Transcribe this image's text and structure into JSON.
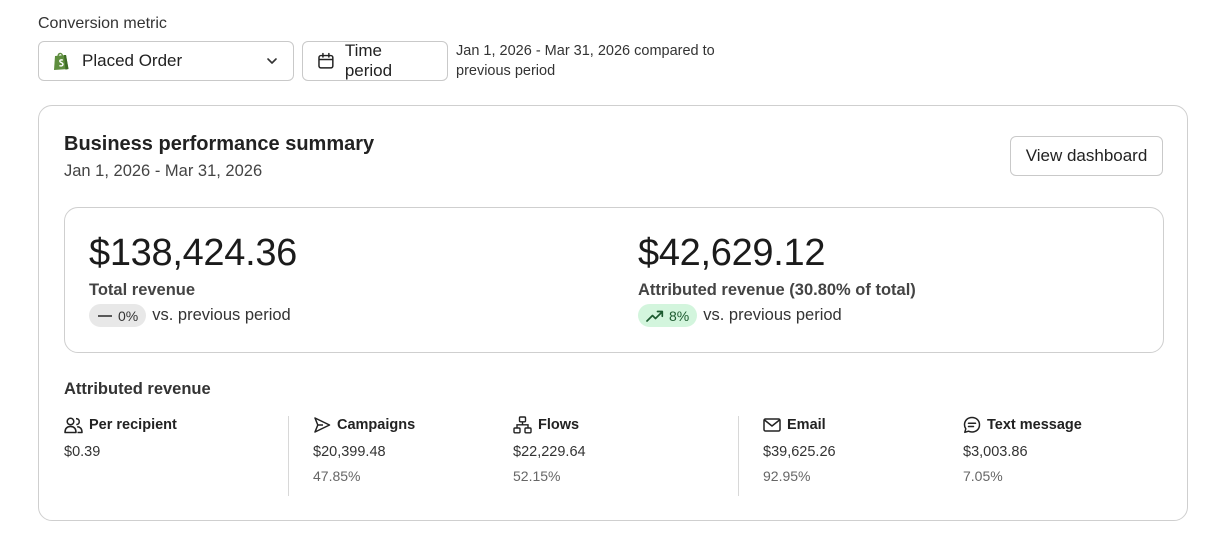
{
  "filter": {
    "metric_label": "Conversion metric",
    "metric_value": "Placed Order",
    "time_button": "Time period",
    "period_note": "Jan 1, 2026 - Mar 31, 2026 compared to previous period"
  },
  "summary": {
    "title": "Business performance summary",
    "date_range": "Jan 1, 2026 - Mar 31, 2026",
    "view_dashboard": "View dashboard"
  },
  "totals": {
    "total": {
      "amount": "$138,424.36",
      "label": "Total revenue",
      "change": "0%",
      "compare": "vs. previous period"
    },
    "attributed": {
      "amount": "$42,629.12",
      "label": "Attributed revenue (30.80% of total)",
      "change": "8%",
      "compare": "vs. previous period"
    }
  },
  "attributed": {
    "title": "Attributed revenue",
    "stats": [
      {
        "label": "Per recipient",
        "value": "$0.39",
        "pct": ""
      },
      {
        "label": "Campaigns",
        "value": "$20,399.48",
        "pct": "47.85%"
      },
      {
        "label": "Flows",
        "value": "$22,229.64",
        "pct": "52.15%"
      },
      {
        "label": "Email",
        "value": "$39,625.26",
        "pct": "92.95%"
      },
      {
        "label": "Text message",
        "value": "$3,003.86",
        "pct": "7.05%"
      }
    ]
  },
  "colors": {
    "positive_pill_bg": "#d3f5dd",
    "positive_pill_fg": "#1d5b30",
    "neutral_pill_bg": "#e8e8e8",
    "shopify_green": "#5e8e3e"
  },
  "icons": {
    "metric": "shopify-bag-icon",
    "dropdown": "chevron-down-icon",
    "time": "calendar-icon",
    "neutral_change": "dash-icon",
    "positive_change": "trend-up-icon",
    "per_recipient": "users-icon",
    "campaigns": "send-icon",
    "flows": "flow-icon",
    "email": "mail-icon",
    "text_message": "chat-icon"
  }
}
